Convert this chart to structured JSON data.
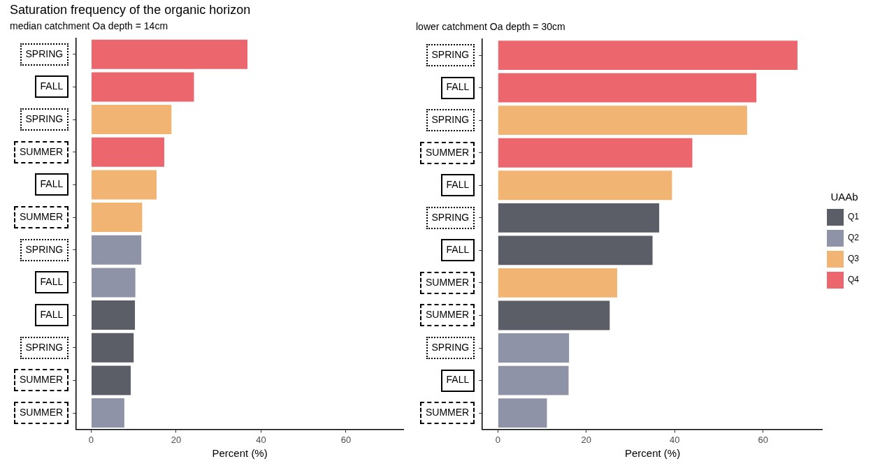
{
  "chart_data": [
    {
      "type": "bar",
      "orientation": "horizontal",
      "stacked": true,
      "title": "Saturation frequency of the organic horizon",
      "subtitle": "median catchment Oa depth = 14cm",
      "xlabel": "Percent (%)",
      "categories": [
        "SPRING",
        "FALL",
        "SPRING",
        "SUMMER",
        "FALL",
        "SUMMER",
        "SPRING",
        "FALL",
        "FALL",
        "SPRING",
        "SUMMER",
        "SUMMER"
      ],
      "series": [
        {
          "color": "#5b5d67",
          "values": [
            null,
            null,
            null,
            null,
            null,
            null,
            null,
            null,
            10.3,
            10.0,
            9.3,
            null
          ]
        },
        {
          "color": "#8f93a8",
          "values": [
            null,
            null,
            null,
            null,
            null,
            null,
            11.8,
            10.4,
            null,
            null,
            null,
            7.8
          ]
        },
        {
          "color": "#f2b472",
          "values": [
            null,
            null,
            18.9,
            null,
            15.4,
            12.0,
            null,
            null,
            null,
            null,
            null,
            null
          ]
        },
        {
          "color": "#eb666d",
          "values": [
            36.8,
            24.2,
            null,
            17.2,
            null,
            null,
            null,
            null,
            null,
            null,
            null,
            null
          ]
        }
      ],
      "xlim": [
        -3.5,
        73.5
      ],
      "xticks": [
        0,
        20,
        40,
        60
      ],
      "grid": false,
      "legend": false
    },
    {
      "type": "bar",
      "orientation": "horizontal",
      "stacked": true,
      "subtitle": "lower catchment Oa depth = 30cm",
      "xlabel": "Percent (%)",
      "legend_title": "UAAb",
      "categories": [
        "SPRING",
        "FALL",
        "SPRING",
        "SUMMER",
        "FALL",
        "SPRING",
        "FALL",
        "SUMMER",
        "SUMMER",
        "SPRING",
        "FALL",
        "SUMMER"
      ],
      "series": [
        {
          "name": "Q1",
          "color": "#5b5d67",
          "values": [
            null,
            null,
            null,
            null,
            null,
            36.5,
            35.0,
            null,
            25.3,
            null,
            null,
            null
          ]
        },
        {
          "name": "Q2",
          "color": "#8f93a8",
          "values": [
            null,
            null,
            null,
            null,
            null,
            null,
            null,
            null,
            null,
            16.1,
            16.0,
            11.1
          ]
        },
        {
          "name": "Q3",
          "color": "#f2b472",
          "values": [
            null,
            null,
            56.4,
            null,
            39.4,
            null,
            null,
            27.0,
            null,
            null,
            null,
            null
          ]
        },
        {
          "name": "Q4",
          "color": "#eb666d",
          "values": [
            67.8,
            58.5,
            null,
            44.0,
            null,
            null,
            null,
            null,
            null,
            null,
            null,
            null
          ]
        }
      ],
      "xlim": [
        -3.5,
        73.5
      ],
      "xticks": [
        0,
        20,
        40,
        60
      ],
      "grid": false,
      "legend": "right"
    }
  ]
}
